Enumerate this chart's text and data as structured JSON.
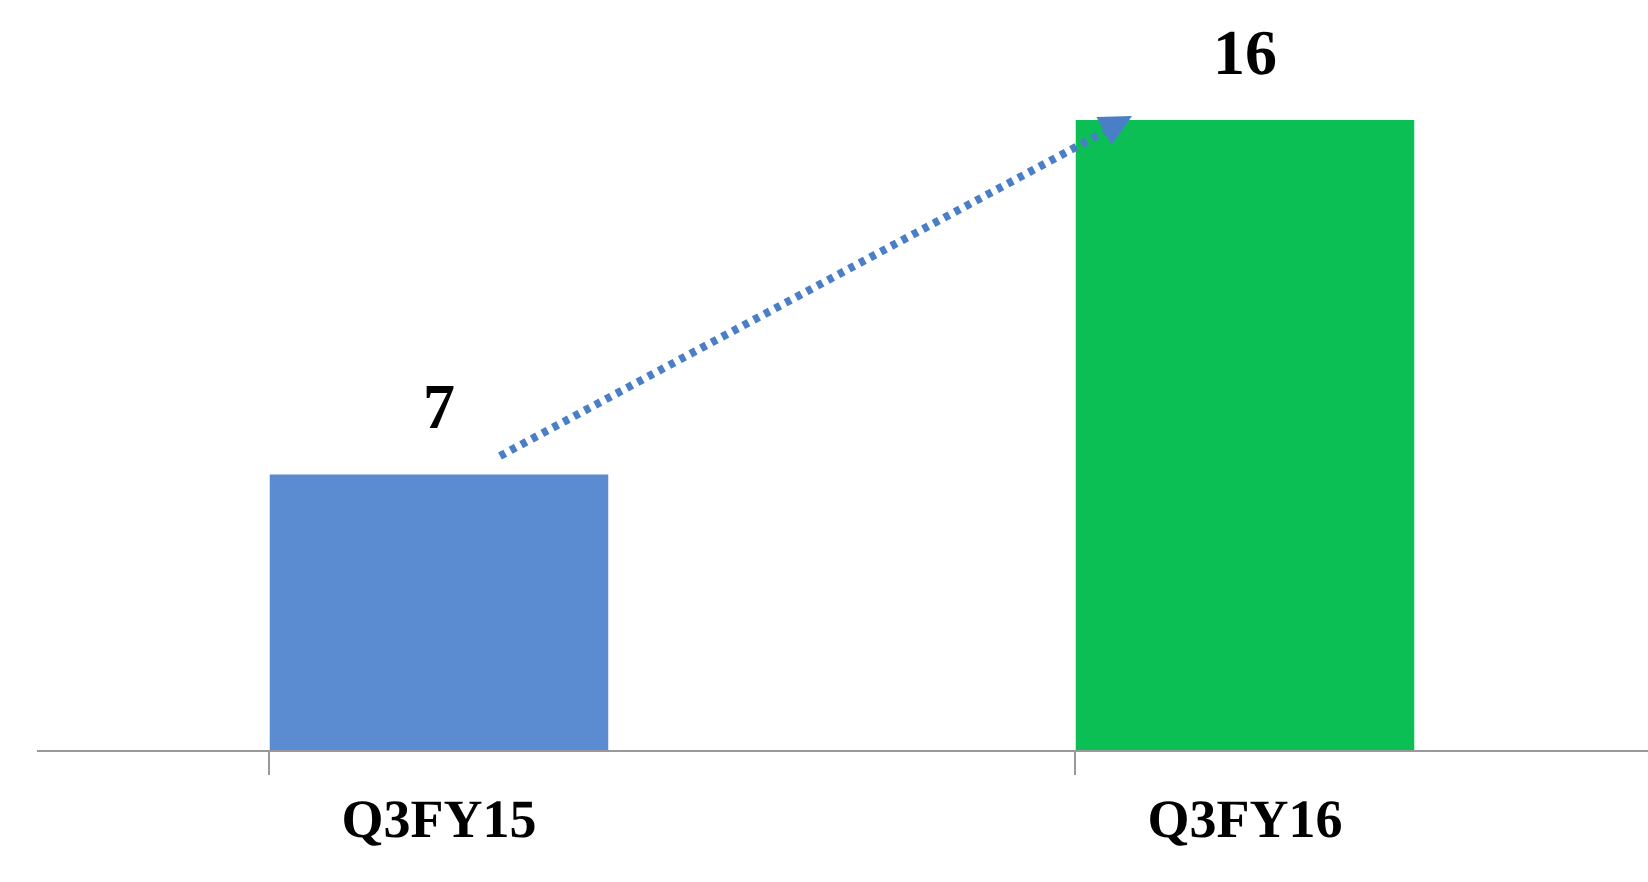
{
  "chart_data": {
    "type": "bar",
    "categories": [
      "Q3FY15",
      "Q3FY16"
    ],
    "values": [
      7,
      16
    ],
    "colors": [
      "#5b8bd0",
      "#0bbf55"
    ],
    "data_labels": true
  }
}
